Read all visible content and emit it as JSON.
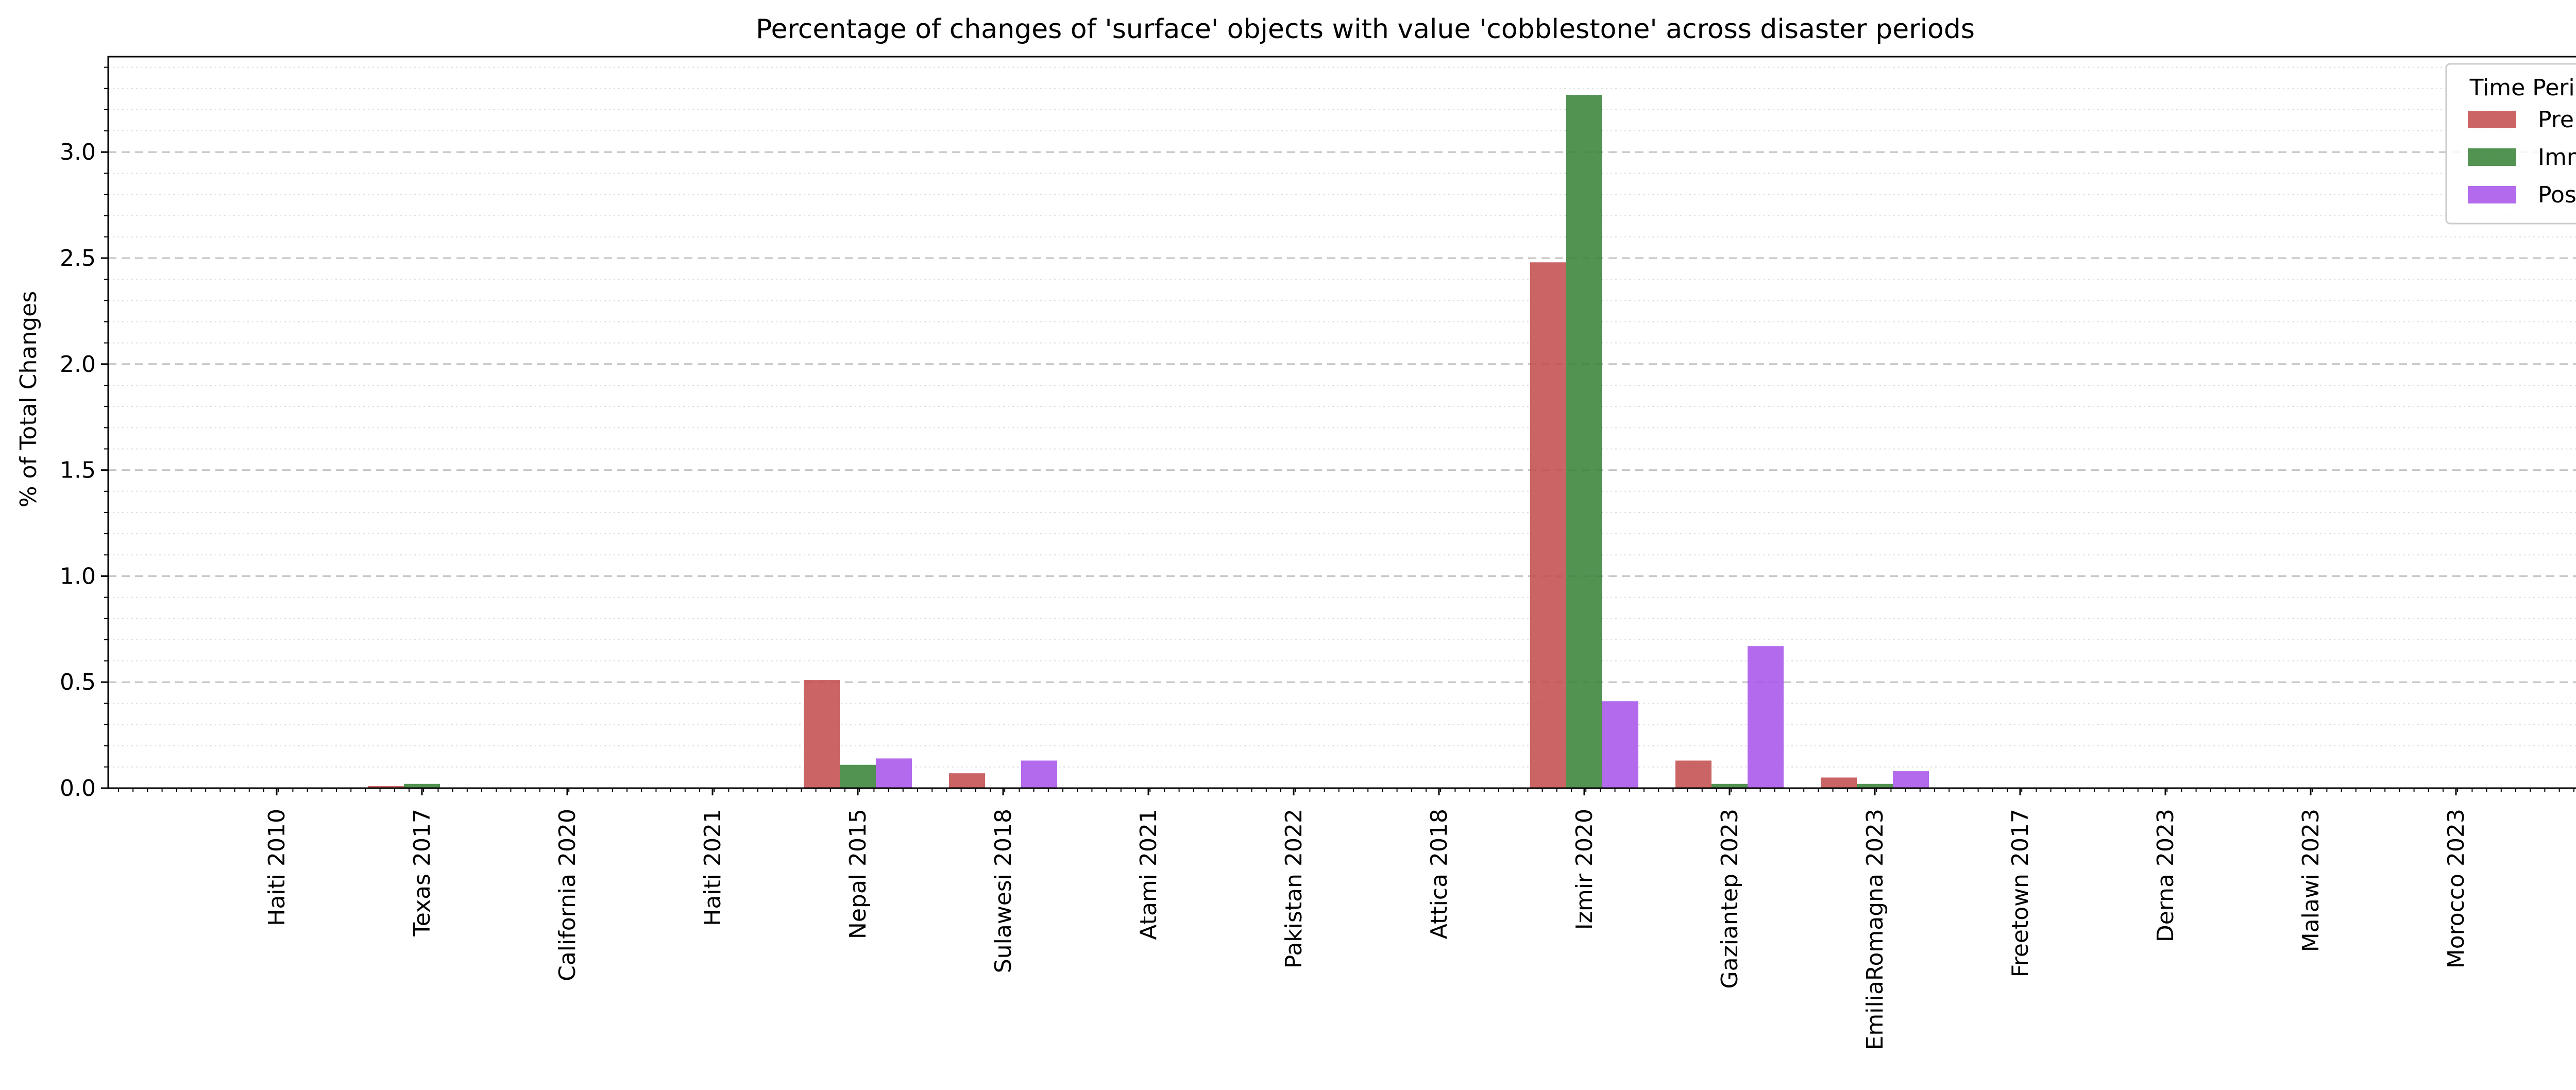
{
  "chart_data": {
    "type": "bar",
    "title": "Percentage of changes of 'surface' objects with value 'cobblestone' across disaster periods",
    "xlabel": "",
    "ylabel": "% of Total Changes",
    "ylim": [
      0,
      3.45
    ],
    "yticks": [
      "0.0",
      "0.5",
      "1.0",
      "1.5",
      "2.0",
      "2.5",
      "3.0"
    ],
    "grid": "horizontal dashed major, dotted minor",
    "legend": {
      "title": "Time Period",
      "placement": "top-right"
    },
    "categories": [
      "Haiti 2010",
      "Texas 2017",
      "California 2020",
      "Haiti 2021",
      "Nepal 2015",
      "Sulawesi 2018",
      "Atami 2021",
      "Pakistan 2022",
      "Attica 2018",
      "Izmir 2020",
      "Gaziantep 2023",
      "EmiliaRomagna 2023",
      "Freetown 2017",
      "Derna 2023",
      "Malawi 2023",
      "Morocco 2023"
    ],
    "series": [
      {
        "name": "Pre",
        "color": "#c44e4e",
        "values": [
          0,
          0.01,
          0,
          0,
          0.51,
          0.07,
          0,
          0,
          0,
          2.48,
          0.13,
          0.05,
          0,
          0,
          0,
          0
        ]
      },
      {
        "name": "Imm",
        "color": "#3a843a",
        "values": [
          0,
          0.02,
          0,
          0,
          0.11,
          0,
          0,
          0,
          0,
          3.27,
          0.02,
          0.02,
          0,
          0,
          0,
          0
        ]
      },
      {
        "name": "Post",
        "color": "#a855eb",
        "values": [
          0,
          0,
          0,
          0,
          0.14,
          0.13,
          0,
          0,
          0,
          0.41,
          0.67,
          0.08,
          0,
          0,
          0,
          0
        ]
      }
    ]
  }
}
